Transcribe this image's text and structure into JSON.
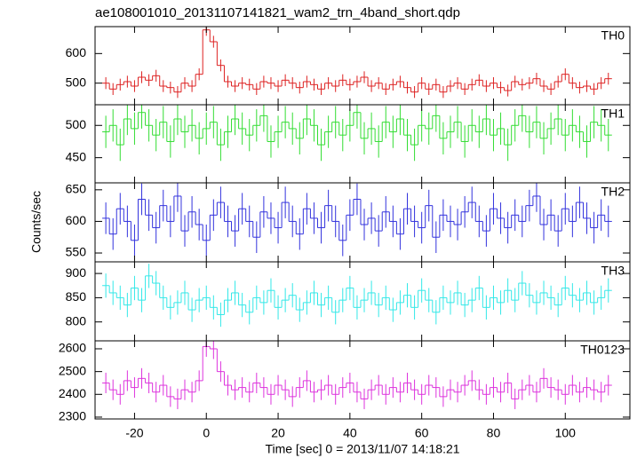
{
  "chart_data": [
    {
      "type": "line",
      "title": "ae108001010_20131107141821_wam2_trn_4band_short.qdp",
      "ylim": [
        427,
        691
      ],
      "yticks": [
        500,
        600
      ],
      "series": [
        {
          "name": "TH0",
          "color": "#dd2222",
          "error": 20,
          "values": [
            500,
            480,
            495,
            505,
            490,
            520,
            510,
            525,
            490,
            485,
            470,
            500,
            490,
            530,
            680,
            640,
            560,
            505,
            490,
            500,
            495,
            480,
            505,
            500,
            490,
            510,
            500,
            485,
            505,
            495,
            480,
            500,
            490,
            510,
            495,
            505,
            520,
            490,
            500,
            480,
            495,
            505,
            485,
            470,
            500,
            480,
            495,
            470,
            490,
            500,
            480,
            495,
            510,
            490,
            500,
            485,
            475,
            505,
            495,
            500,
            515,
            490,
            480,
            505,
            530,
            500,
            485,
            490,
            480,
            500,
            515
          ]
        }
      ]
    },
    {
      "type": "line",
      "ylim": [
        411,
        532
      ],
      "yticks": [
        450,
        500
      ],
      "series": [
        {
          "name": "TH1",
          "color": "#33dd33",
          "error": 25,
          "values": [
            490,
            500,
            470,
            510,
            495,
            520,
            500,
            485,
            505,
            475,
            510,
            490,
            500,
            480,
            495,
            505,
            470,
            490,
            510,
            495,
            485,
            500,
            515,
            475,
            490,
            505,
            495,
            480,
            510,
            500,
            470,
            490,
            505,
            485,
            500,
            520,
            480,
            495,
            475,
            505,
            490,
            510,
            485,
            470,
            500,
            495,
            515,
            480,
            490,
            505,
            475,
            500,
            490,
            510,
            485,
            495,
            470,
            500,
            515,
            490,
            505,
            480,
            495,
            510,
            485,
            500,
            490,
            475,
            505,
            500,
            485
          ]
        }
      ]
    },
    {
      "type": "line",
      "ylabel": "Counts/sec",
      "ylim": [
        536,
        661
      ],
      "yticks": [
        550,
        600,
        650
      ],
      "series": [
        {
          "name": "TH2",
          "color": "#3333dd",
          "error": 25,
          "values": [
            605,
            580,
            620,
            600,
            570,
            635,
            610,
            590,
            625,
            600,
            640,
            585,
            615,
            595,
            570,
            610,
            630,
            600,
            585,
            620,
            600,
            575,
            615,
            605,
            590,
            630,
            600,
            580,
            620,
            605,
            590,
            625,
            600,
            570,
            610,
            635,
            595,
            605,
            585,
            615,
            600,
            580,
            620,
            600,
            590,
            625,
            575,
            610,
            600,
            595,
            615,
            630,
            600,
            585,
            620,
            605,
            590,
            610,
            600,
            625,
            640,
            595,
            610,
            585,
            620,
            600,
            630,
            605,
            590,
            610,
            600
          ]
        }
      ]
    },
    {
      "type": "line",
      "ylim": [
        761,
        924
      ],
      "yticks": [
        800,
        850,
        900
      ],
      "series": [
        {
          "name": "TH3",
          "color": "#33e8e8",
          "error": 25,
          "values": [
            875,
            860,
            850,
            835,
            870,
            845,
            895,
            880,
            850,
            830,
            840,
            860,
            825,
            845,
            850,
            830,
            815,
            845,
            860,
            835,
            820,
            850,
            840,
            865,
            830,
            845,
            855,
            825,
            840,
            860,
            835,
            850,
            820,
            845,
            870,
            830,
            845,
            860,
            835,
            850,
            825,
            840,
            855,
            830,
            865,
            845,
            820,
            850,
            840,
            860,
            835,
            845,
            870,
            830,
            850,
            840,
            865,
            845,
            880,
            855,
            840,
            860,
            850,
            835,
            870,
            855,
            845,
            860,
            840,
            850,
            865
          ]
        }
      ]
    },
    {
      "type": "line",
      "xlabel": "Time [sec] 0 = 2013/11/07 14:18:21",
      "xlim": [
        -31,
        118
      ],
      "xticks": [
        -20,
        0,
        20,
        40,
        60,
        80,
        100
      ],
      "x": [
        -28,
        -26,
        -24,
        -22,
        -20,
        -18,
        -16,
        -14,
        -12,
        -10,
        -8,
        -6,
        -4,
        -2,
        0,
        2,
        4,
        6,
        8,
        10,
        12,
        14,
        16,
        18,
        20,
        22,
        24,
        26,
        28,
        30,
        32,
        34,
        36,
        38,
        40,
        42,
        44,
        46,
        48,
        50,
        52,
        54,
        56,
        58,
        60,
        62,
        64,
        66,
        68,
        70,
        72,
        74,
        76,
        78,
        80,
        82,
        84,
        86,
        88,
        90,
        92,
        94,
        96,
        98,
        100,
        102,
        104,
        106,
        108,
        110,
        112
      ],
      "ylim": [
        2292,
        2635
      ],
      "yticks": [
        2300,
        2400,
        2500,
        2600
      ],
      "series": [
        {
          "name": "TH0123",
          "color": "#dd33dd",
          "error": 45,
          "values": [
            2450,
            2420,
            2400,
            2460,
            2430,
            2470,
            2450,
            2410,
            2440,
            2390,
            2380,
            2420,
            2410,
            2460,
            2610,
            2600,
            2500,
            2440,
            2420,
            2430,
            2410,
            2450,
            2430,
            2400,
            2440,
            2420,
            2390,
            2430,
            2460,
            2410,
            2420,
            2440,
            2400,
            2430,
            2450,
            2410,
            2380,
            2420,
            2440,
            2400,
            2430,
            2410,
            2450,
            2420,
            2400,
            2440,
            2430,
            2390,
            2420,
            2410,
            2440,
            2460,
            2420,
            2400,
            2430,
            2410,
            2450,
            2380,
            2420,
            2440,
            2410,
            2470,
            2430,
            2420,
            2400,
            2440,
            2410,
            2430,
            2420,
            2410,
            2440
          ]
        }
      ]
    }
  ]
}
